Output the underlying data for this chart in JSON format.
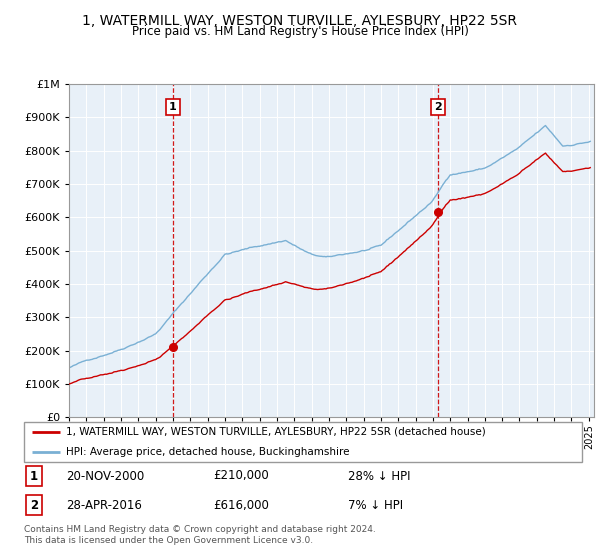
{
  "title": "1, WATERMILL WAY, WESTON TURVILLE, AYLESBURY, HP22 5SR",
  "subtitle": "Price paid vs. HM Land Registry's House Price Index (HPI)",
  "sale1_date": "20-NOV-2000",
  "sale1_price": 210000,
  "sale1_hpi_diff": "28% ↓ HPI",
  "sale1_year": 2001.0,
  "sale2_date": "28-APR-2016",
  "sale2_price": 616000,
  "sale2_hpi_diff": "7% ↓ HPI",
  "sale2_year": 2016.3,
  "legend_property": "1, WATERMILL WAY, WESTON TURVILLE, AYLESBURY, HP22 5SR (detached house)",
  "legend_hpi": "HPI: Average price, detached house, Buckinghamshire",
  "footnote": "Contains HM Land Registry data © Crown copyright and database right 2024.\nThis data is licensed under the Open Government Licence v3.0.",
  "hpi_color": "#7ab0d4",
  "property_color": "#cc0000",
  "marker_color": "#cc0000",
  "ylim": [
    0,
    1000000
  ],
  "xlim_start": 1995.0,
  "xlim_end": 2025.3,
  "chart_bg": "#e8f0f8",
  "grid_color": "#ffffff"
}
